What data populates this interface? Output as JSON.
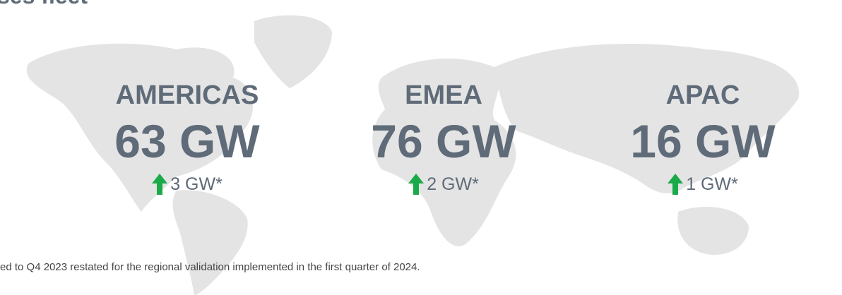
{
  "header": {
    "title": "ses fleet"
  },
  "regions": [
    {
      "name": "AMERICAS",
      "value": "63 GW",
      "change": "3 GW*"
    },
    {
      "name": "EMEA",
      "value": "76 GW",
      "change": "2 GW*"
    },
    {
      "name": "APAC",
      "value": "16 GW",
      "change": "1 GW*"
    }
  ],
  "footnote": "ed to Q4 2023 restated for the regional validation implemented in the first quarter of 2024."
}
